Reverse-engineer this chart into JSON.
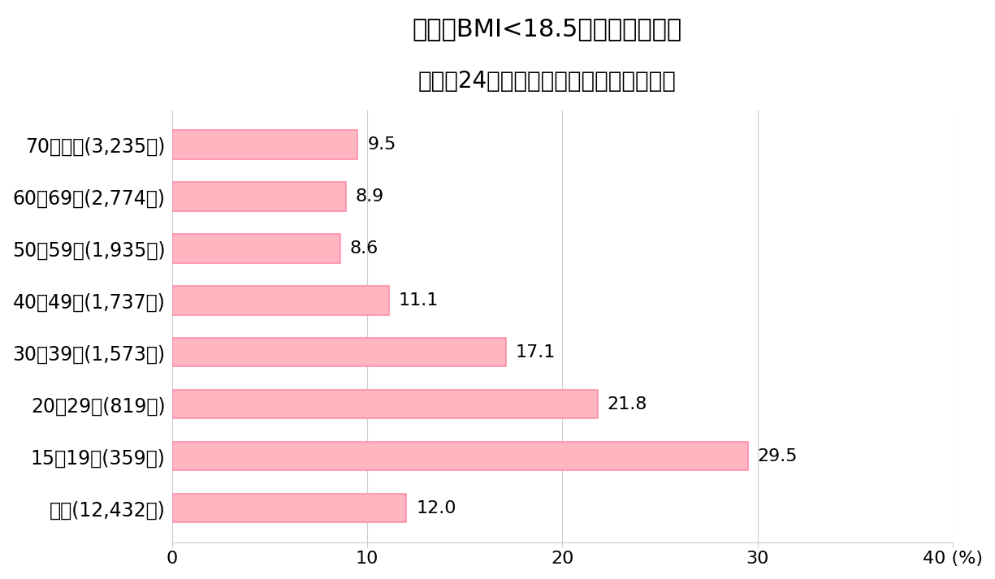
{
  "title_line1": "やせ（BMI<18.5）の女性の割合",
  "title_line2": "～平成24年　国民健康・栄養調査より～",
  "categories": [
    "70歳以上(3,235人)",
    "60～69歳(2,774人)",
    "50～59歳(1,935人)",
    "40～49歳(1,737人)",
    "30～39歳(1,573人)",
    "20～29歳(819人)",
    "15～19歳(359人)",
    "総数(12,432人)"
  ],
  "values": [
    9.5,
    8.9,
    8.6,
    11.1,
    17.1,
    21.8,
    29.5,
    12.0
  ],
  "bar_color": "#FFB6C1",
  "bar_edgecolor": "#FF8FAB",
  "xlim": [
    0,
    40
  ],
  "xticks": [
    0,
    10,
    20,
    30,
    40
  ],
  "xtick_labels": [
    "0",
    "10",
    "20",
    "30",
    "40 (%)"
  ],
  "background_color": "#ffffff",
  "title_fontsize": 22,
  "subtitle_fontsize": 20,
  "tick_fontsize": 16,
  "label_fontsize": 17,
  "value_fontsize": 16,
  "grid_color": "#cccccc"
}
